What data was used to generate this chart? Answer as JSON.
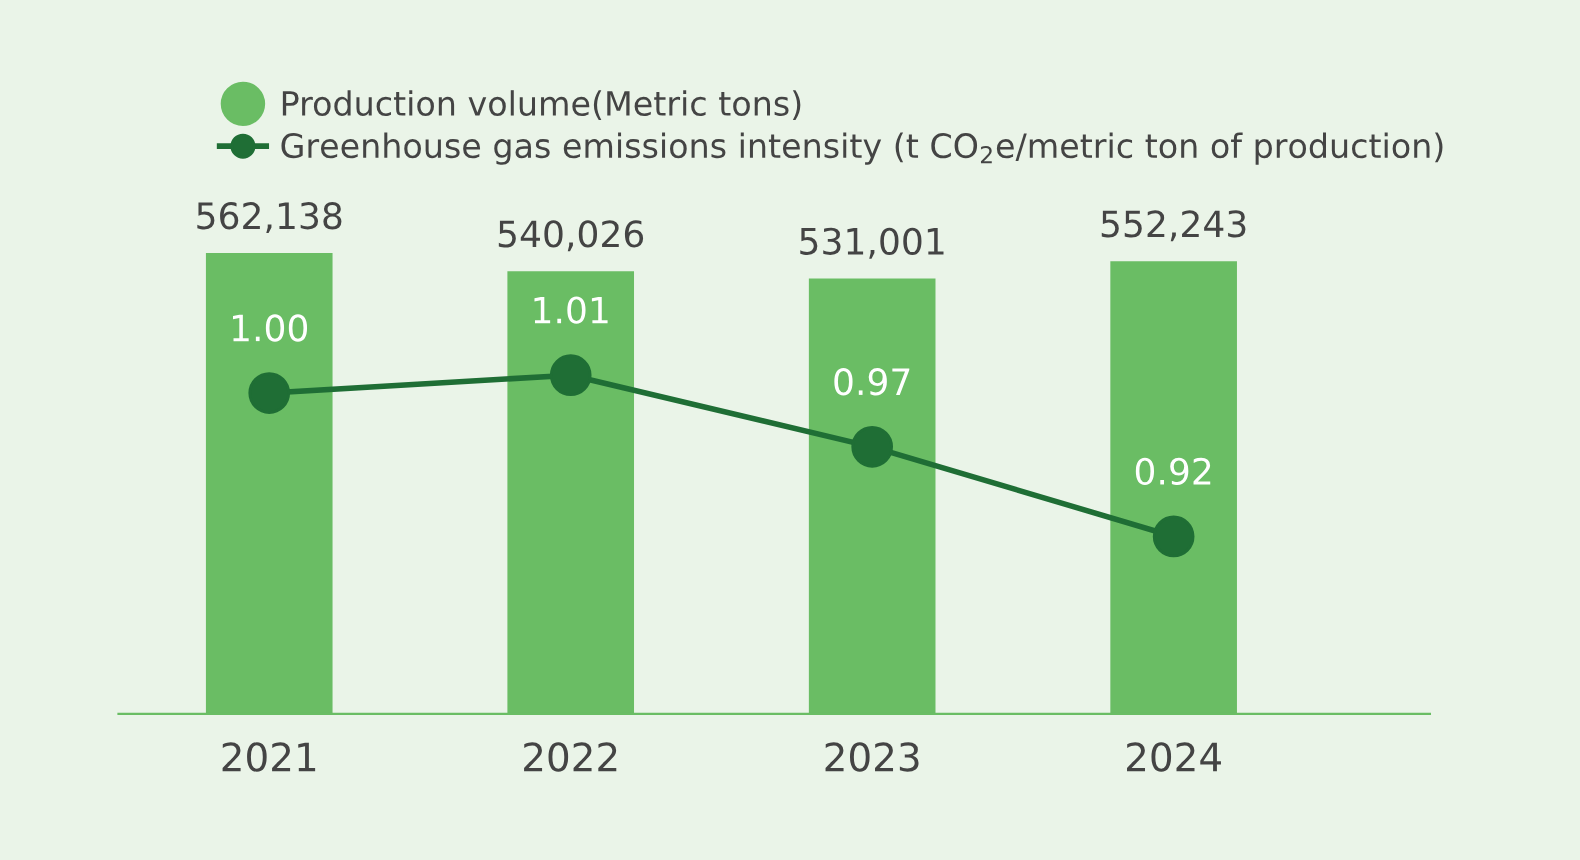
{
  "chart_data": {
    "type": "bar",
    "categories": [
      "2021",
      "2022",
      "2023",
      "2024"
    ],
    "series": [
      {
        "name": "Production volume(Metric tons)",
        "color": "#6abd64",
        "values": [
          562138,
          540026,
          531001,
          552243
        ],
        "value_labels": [
          "562,138",
          "540,026",
          "531,001",
          "552,243"
        ]
      },
      {
        "name": "Greenhouse gas emissions intensity (t CO$_{2}$e/metric ton of production)",
        "type": "line",
        "axis": "y2",
        "color": "#1f6e35",
        "values": [
          1.0,
          1.01,
          0.97,
          0.92
        ],
        "value_labels": [
          "1.00",
          "1.01",
          "0.97",
          "0.92"
        ]
      }
    ],
    "tick_labels": "x",
    "marker": "circle",
    "line_style": "solid",
    "legend": "top left",
    "grid": false
  }
}
